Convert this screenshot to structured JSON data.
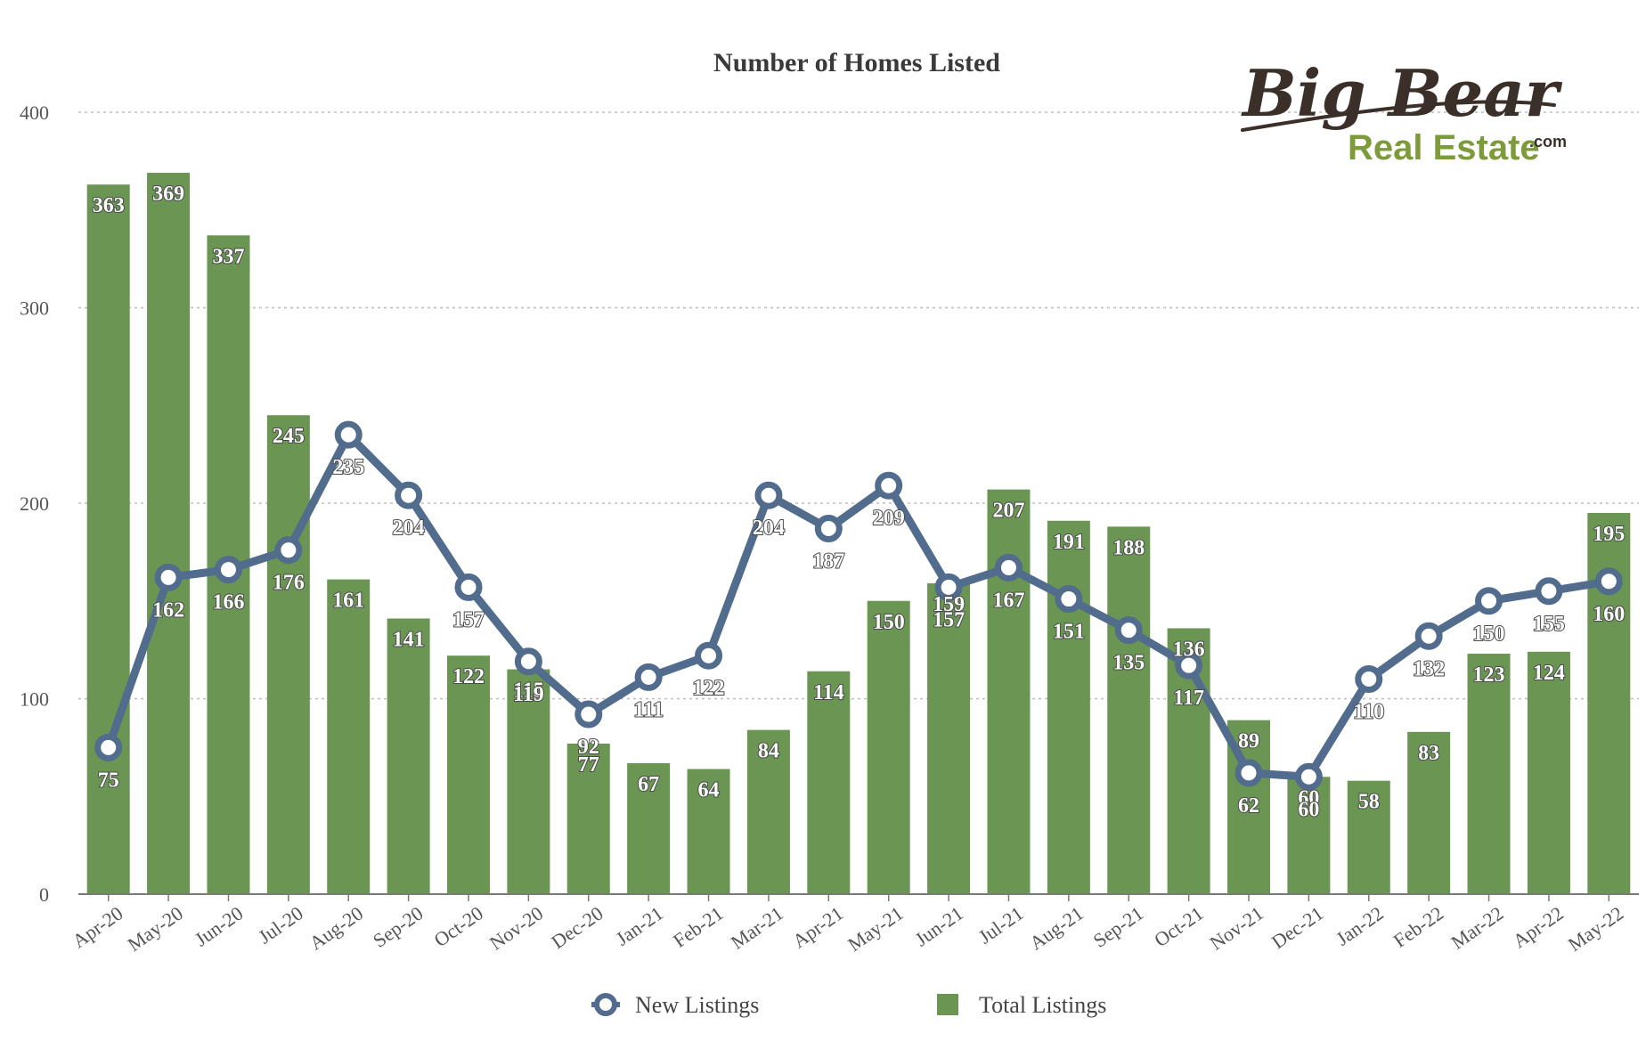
{
  "chart_data": {
    "type": "bar",
    "title": "Number of Homes Listed",
    "xlabel": "",
    "ylabel": "",
    "ylim": [
      0,
      400
    ],
    "yticks": [
      0,
      100,
      200,
      300,
      400
    ],
    "grid": true,
    "legend_position": "bottom",
    "categories": [
      "Apr-20",
      "May-20",
      "Jun-20",
      "Jul-20",
      "Aug-20",
      "Sep-20",
      "Oct-20",
      "Nov-20",
      "Dec-20",
      "Jan-21",
      "Feb-21",
      "Mar-21",
      "Apr-21",
      "May-21",
      "Jun-21",
      "Jul-21",
      "Aug-21",
      "Sep-21",
      "Oct-21",
      "Nov-21",
      "Dec-21",
      "Jan-22",
      "Feb-22",
      "Mar-22",
      "Apr-22",
      "May-22"
    ],
    "series": [
      {
        "name": "New Listings",
        "type": "line",
        "color": "#526c8d",
        "values": [
          75,
          162,
          166,
          176,
          235,
          204,
          157,
          119,
          92,
          111,
          122,
          204,
          187,
          209,
          157,
          167,
          151,
          135,
          117,
          62,
          60,
          110,
          132,
          150,
          155,
          160
        ]
      },
      {
        "name": "Total Listings",
        "type": "bar",
        "color": "#6b9553",
        "values": [
          363,
          369,
          337,
          245,
          161,
          141,
          122,
          115,
          77,
          67,
          64,
          84,
          114,
          150,
          159,
          207,
          191,
          188,
          136,
          89,
          60,
          58,
          83,
          123,
          124,
          195
        ]
      }
    ]
  },
  "logo": {
    "line1": "Big Bear",
    "line2": "Real Estate",
    "suffix": ".com"
  },
  "colors": {
    "bar": "#6b9553",
    "line": "#526c8d",
    "grid": "#bdbdbd",
    "axis": "#7a7a7a",
    "title": "#3a3a3a"
  }
}
